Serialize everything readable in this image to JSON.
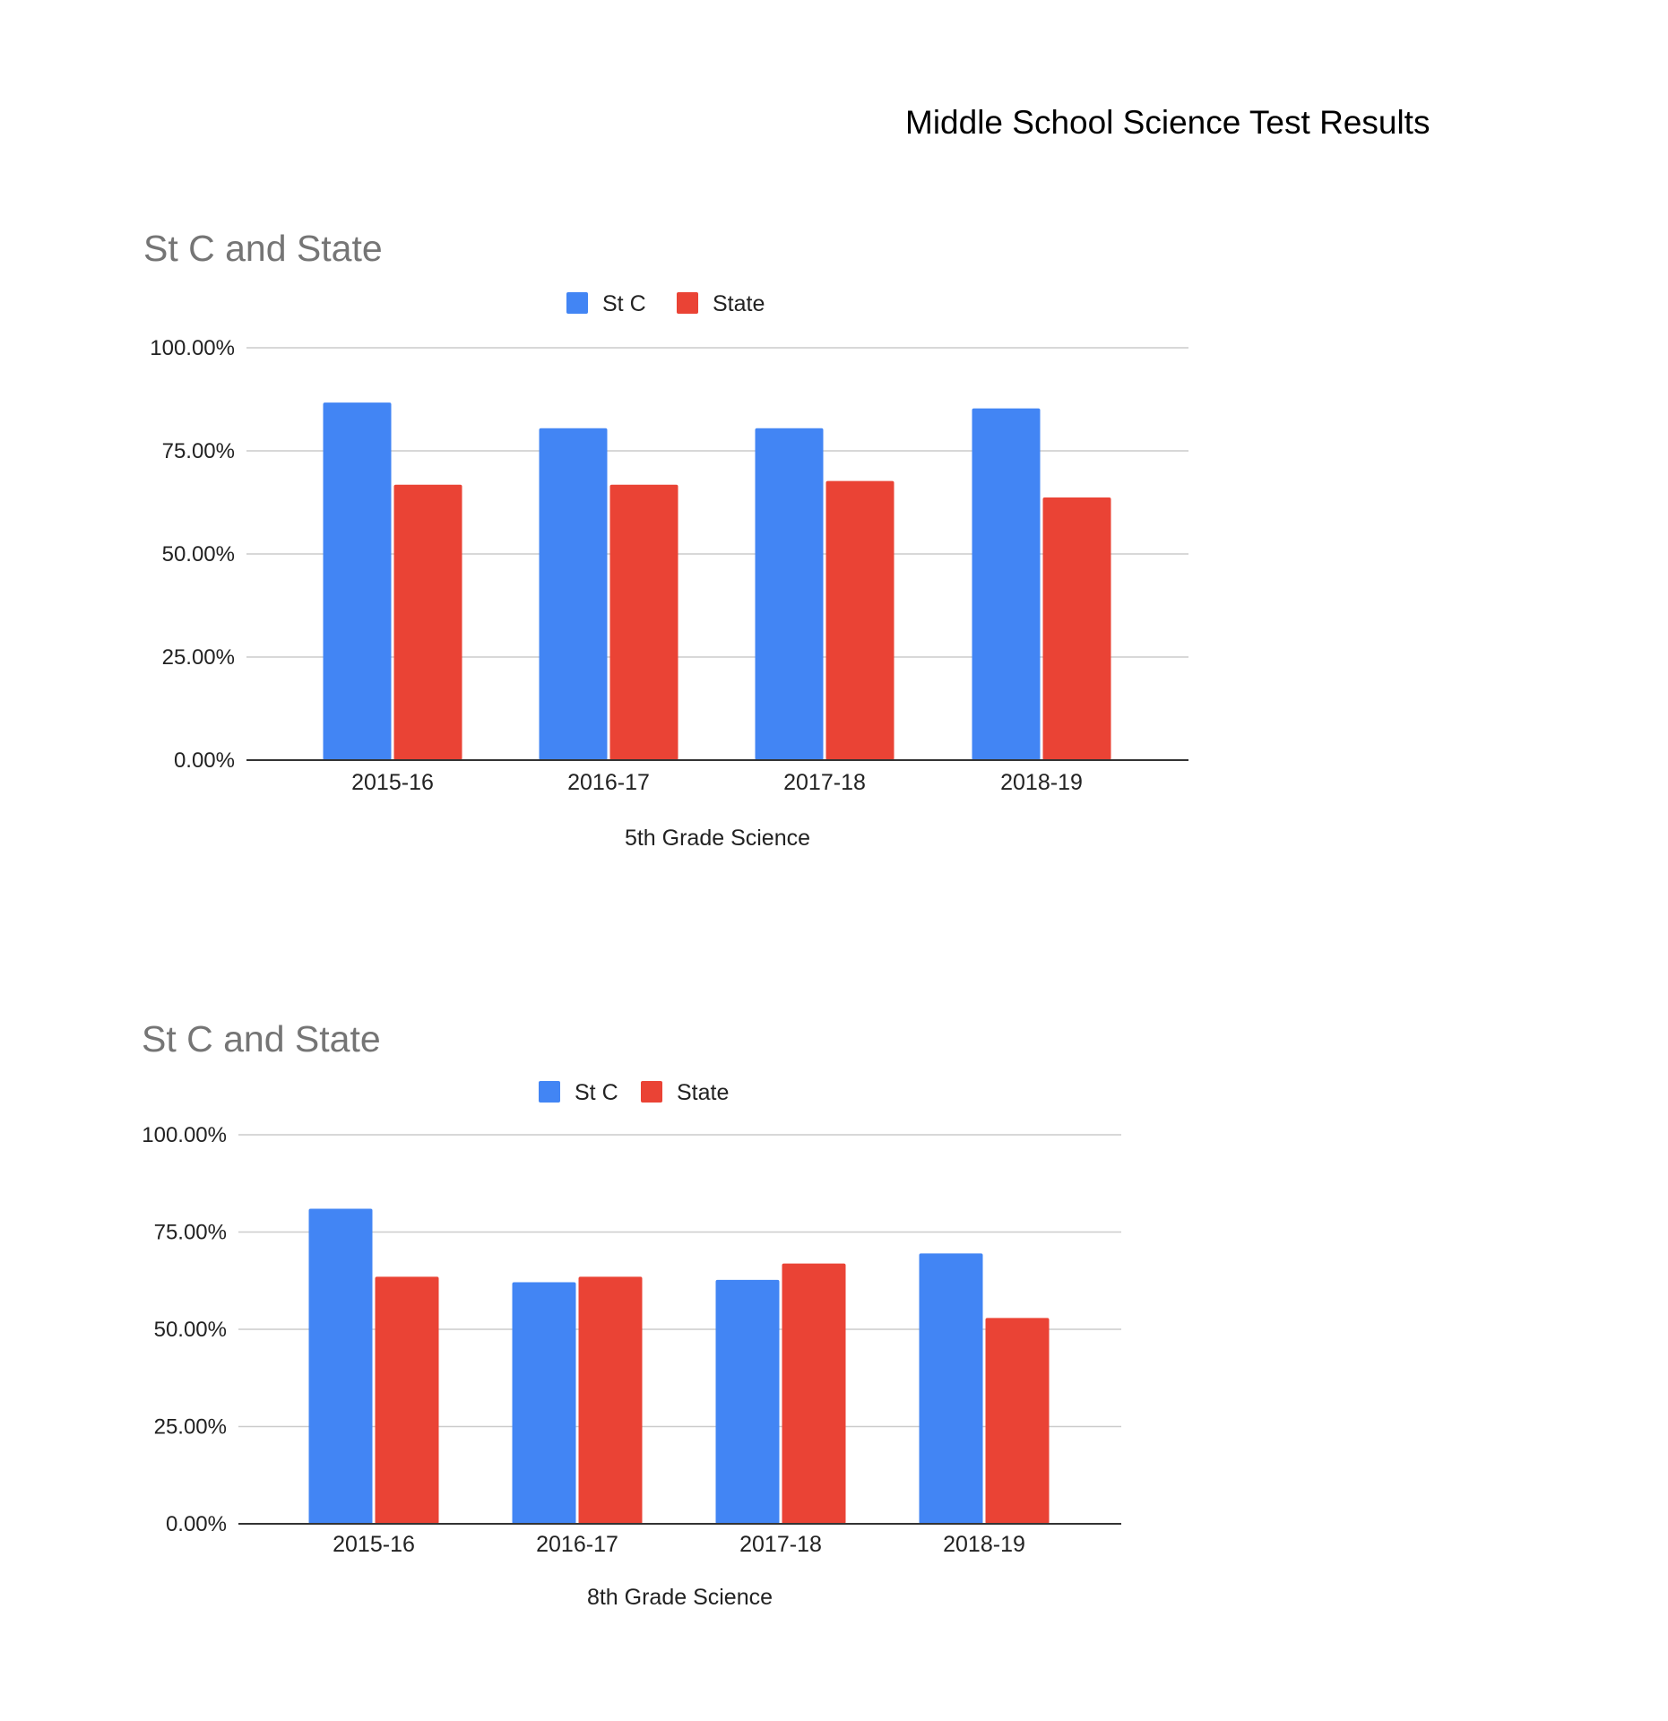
{
  "page": {
    "title": "Middle School Science Test Results"
  },
  "colors": {
    "st_c": "#4285f4",
    "state": "#ea4335",
    "grid": "#cccccc",
    "axis": "#333333"
  },
  "chart_data": [
    {
      "type": "bar",
      "title": "St C and State",
      "xlabel": "5th Grade Science",
      "ylabel": "",
      "ylim": [
        0,
        100
      ],
      "yticks": [
        "0.00%",
        "25.00%",
        "50.00%",
        "75.00%",
        "100.00%"
      ],
      "categories": [
        "2015-16",
        "2016-17",
        "2017-18",
        "2018-19"
      ],
      "legend": "top-center",
      "series": [
        {
          "name": "St C",
          "values": [
            86.7,
            80.5,
            80.5,
            85.3
          ]
        },
        {
          "name": "State",
          "values": [
            66.8,
            66.8,
            67.7,
            63.7
          ]
        }
      ]
    },
    {
      "type": "bar",
      "title": "St C and State",
      "xlabel": "8th Grade Science",
      "ylabel": "",
      "ylim": [
        0,
        100
      ],
      "yticks": [
        "0.00%",
        "25.00%",
        "50.00%",
        "75.00%",
        "100.00%"
      ],
      "categories": [
        "2015-16",
        "2016-17",
        "2017-18",
        "2018-19"
      ],
      "legend": "top-center",
      "series": [
        {
          "name": "St C",
          "values": [
            81.0,
            62.1,
            62.7,
            69.5
          ]
        },
        {
          "name": "State",
          "values": [
            63.5,
            63.5,
            66.9,
            52.9
          ]
        }
      ]
    }
  ]
}
